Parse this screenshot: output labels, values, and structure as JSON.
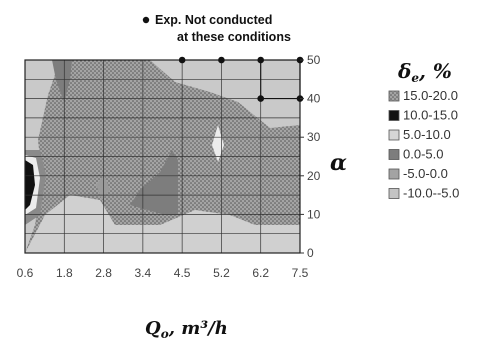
{
  "chart_data": {
    "type": "heatmap",
    "title": "",
    "xlabel": "Q",
    "xlabel_sub": "o",
    "xlabel_unit": ", m³/h",
    "ylabel": "α",
    "x_ticks": [
      "0.6",
      "1.8",
      "2.8",
      "3.4",
      "4.5",
      "5.2",
      "6.2",
      "7.5"
    ],
    "y_ticks": [
      "0",
      "10",
      "20",
      "30",
      "40",
      "50"
    ],
    "ylim": [
      0,
      50
    ],
    "grid": true,
    "legend_title": "δ",
    "legend_title_sub": "e",
    "legend_title_unit": ", %",
    "legend_position": "right",
    "legend": [
      {
        "label": "15.0-20.0",
        "fill": "#9a9a9a",
        "pattern": "dots"
      },
      {
        "label": "10.0-15.0",
        "fill": "#111111",
        "pattern": "none"
      },
      {
        "label": "5.0-10.0",
        "fill": "#d6d6d6",
        "pattern": "none"
      },
      {
        "label": "0.0-5.0",
        "fill": "#7d7d7d",
        "pattern": "none"
      },
      {
        "label": "-5.0-0.0",
        "fill": "#a3a3a3",
        "pattern": "none"
      },
      {
        "label": "-10.0--5.0",
        "fill": "#c4c4c4",
        "pattern": "none"
      }
    ],
    "annotation": [
      "Exp. Not conducted",
      "at these conditions"
    ],
    "not_conducted_points": [
      {
        "x": "4.5",
        "y": 50
      },
      {
        "x": "5.2",
        "y": 50
      },
      {
        "x": "6.2",
        "y": 50
      },
      {
        "x": "7.5",
        "y": 50
      },
      {
        "x": "6.2",
        "y": 40
      },
      {
        "x": "7.5",
        "y": 40
      }
    ]
  }
}
